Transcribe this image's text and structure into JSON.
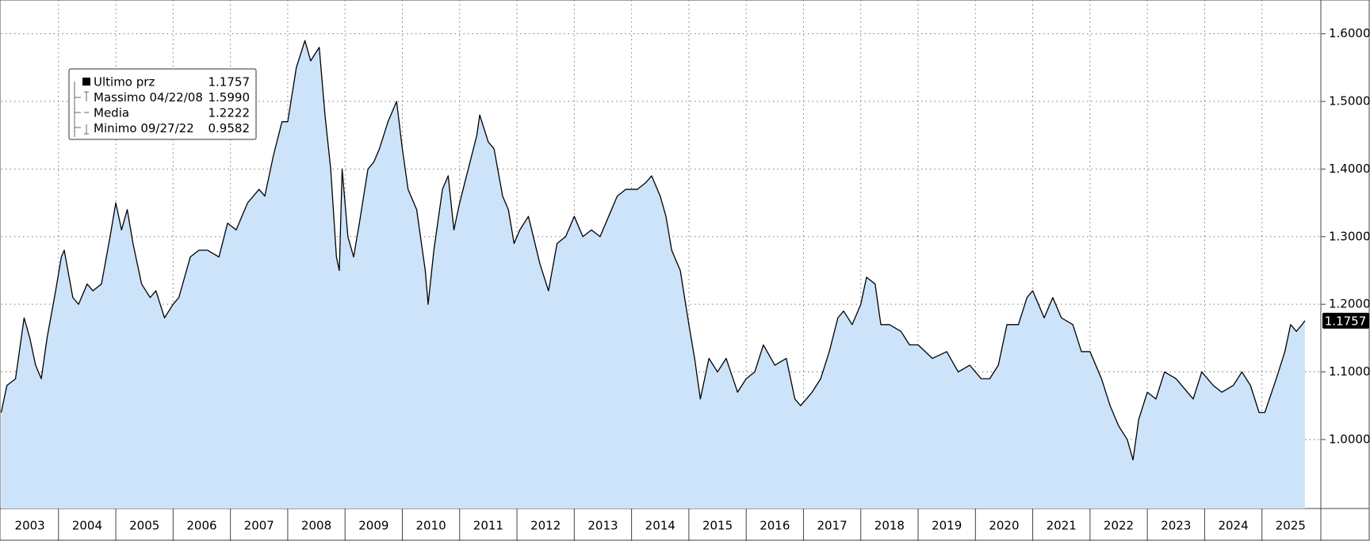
{
  "chart_data": {
    "type": "area",
    "color": "#000000",
    "fill": "#cce3fa",
    "grid": true,
    "xlim": [
      2003,
      2026
    ],
    "ylim": [
      0.898,
      1.65
    ],
    "xticks": [
      2003,
      2004,
      2005,
      2006,
      2007,
      2008,
      2009,
      2010,
      2011,
      2012,
      2013,
      2014,
      2015,
      2016,
      2017,
      2018,
      2019,
      2020,
      2021,
      2022,
      2023,
      2024,
      2025
    ],
    "yticks": [
      {
        "value": 1.0,
        "label": "1.0000"
      },
      {
        "value": 1.1,
        "label": "1.1000"
      },
      {
        "value": 1.2,
        "label": "1.2000"
      },
      {
        "value": 1.3,
        "label": "1.3000"
      },
      {
        "value": 1.4,
        "label": "1.4000"
      },
      {
        "value": 1.5,
        "label": "1.5000"
      },
      {
        "value": 1.6,
        "label": "1.6000"
      }
    ],
    "legend": [
      {
        "label": "Ultimo prz",
        "value": "1.1757"
      },
      {
        "label": "Massimo 04/22/08",
        "value": "1.5990"
      },
      {
        "label": "Media",
        "value": "1.2222"
      },
      {
        "label": "Minimo 09/27/22",
        "value": "0.9582"
      }
    ],
    "x": [
      2003.0,
      2003.1,
      2003.25,
      2003.4,
      2003.5,
      2003.6,
      2003.7,
      2003.8,
      2003.95,
      2004.05,
      2004.1,
      2004.25,
      2004.35,
      2004.5,
      2004.6,
      2004.75,
      2004.9,
      2005.0,
      2005.1,
      2005.2,
      2005.3,
      2005.45,
      2005.6,
      2005.7,
      2005.85,
      2006.0,
      2006.1,
      2006.3,
      2006.45,
      2006.6,
      2006.8,
      2006.95,
      2007.1,
      2007.3,
      2007.5,
      2007.6,
      2007.75,
      2007.9,
      2008.0,
      2008.15,
      2008.3,
      2008.4,
      2008.55,
      2008.65,
      2008.75,
      2008.85,
      2008.9,
      2008.95,
      2009.05,
      2009.15,
      2009.25,
      2009.4,
      2009.5,
      2009.6,
      2009.75,
      2009.9,
      2010.0,
      2010.1,
      2010.25,
      2010.4,
      2010.45,
      2010.55,
      2010.7,
      2010.8,
      2010.9,
      2011.0,
      2011.15,
      2011.3,
      2011.35,
      2011.5,
      2011.6,
      2011.75,
      2011.85,
      2011.95,
      2012.05,
      2012.2,
      2012.4,
      2012.55,
      2012.7,
      2012.85,
      2013.0,
      2013.15,
      2013.3,
      2013.45,
      2013.6,
      2013.75,
      2013.9,
      2014.1,
      2014.25,
      2014.35,
      2014.5,
      2014.6,
      2014.7,
      2014.85,
      2015.0,
      2015.1,
      2015.2,
      2015.35,
      2015.5,
      2015.65,
      2015.85,
      2016.0,
      2016.15,
      2016.3,
      2016.5,
      2016.7,
      2016.85,
      2016.95,
      2017.15,
      2017.3,
      2017.45,
      2017.6,
      2017.7,
      2017.85,
      2018.0,
      2018.1,
      2018.25,
      2018.35,
      2018.5,
      2018.7,
      2018.85,
      2019.0,
      2019.25,
      2019.5,
      2019.7,
      2019.9,
      2020.1,
      2020.25,
      2020.4,
      2020.55,
      2020.75,
      2020.9,
      2021.0,
      2021.2,
      2021.35,
      2021.5,
      2021.7,
      2021.85,
      2022.0,
      2022.2,
      2022.35,
      2022.5,
      2022.65,
      2022.75,
      2022.85,
      2023.0,
      2023.15,
      2023.3,
      2023.5,
      2023.7,
      2023.8,
      2023.95,
      2024.15,
      2024.3,
      2024.5,
      2024.65,
      2024.8,
      2024.95,
      2025.05,
      2025.25,
      2025.4,
      2025.5,
      2025.6,
      2025.7,
      2025.75
    ],
    "values": [
      1.04,
      1.08,
      1.09,
      1.18,
      1.15,
      1.11,
      1.09,
      1.15,
      1.22,
      1.27,
      1.28,
      1.21,
      1.2,
      1.23,
      1.22,
      1.23,
      1.3,
      1.35,
      1.31,
      1.34,
      1.29,
      1.23,
      1.21,
      1.22,
      1.18,
      1.2,
      1.21,
      1.27,
      1.28,
      1.28,
      1.27,
      1.32,
      1.31,
      1.35,
      1.37,
      1.36,
      1.42,
      1.47,
      1.47,
      1.55,
      1.59,
      1.56,
      1.58,
      1.48,
      1.4,
      1.27,
      1.25,
      1.4,
      1.3,
      1.27,
      1.32,
      1.4,
      1.41,
      1.43,
      1.47,
      1.5,
      1.43,
      1.37,
      1.34,
      1.25,
      1.2,
      1.28,
      1.37,
      1.39,
      1.31,
      1.35,
      1.4,
      1.45,
      1.48,
      1.44,
      1.43,
      1.36,
      1.34,
      1.29,
      1.31,
      1.33,
      1.26,
      1.22,
      1.29,
      1.3,
      1.33,
      1.3,
      1.31,
      1.3,
      1.33,
      1.36,
      1.37,
      1.37,
      1.38,
      1.39,
      1.36,
      1.33,
      1.28,
      1.25,
      1.17,
      1.12,
      1.06,
      1.12,
      1.1,
      1.12,
      1.07,
      1.09,
      1.1,
      1.14,
      1.11,
      1.12,
      1.06,
      1.05,
      1.07,
      1.09,
      1.13,
      1.18,
      1.19,
      1.17,
      1.2,
      1.24,
      1.23,
      1.17,
      1.17,
      1.16,
      1.14,
      1.14,
      1.12,
      1.13,
      1.1,
      1.11,
      1.09,
      1.09,
      1.11,
      1.17,
      1.17,
      1.21,
      1.22,
      1.18,
      1.21,
      1.18,
      1.17,
      1.13,
      1.13,
      1.09,
      1.05,
      1.02,
      1.0,
      0.97,
      1.03,
      1.07,
      1.06,
      1.1,
      1.09,
      1.07,
      1.06,
      1.1,
      1.08,
      1.07,
      1.08,
      1.1,
      1.08,
      1.04,
      1.04,
      1.09,
      1.13,
      1.17,
      1.16,
      1.17,
      1.1757
    ]
  }
}
